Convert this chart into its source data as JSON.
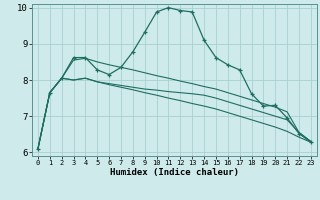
{
  "title": "",
  "xlabel": "Humidex (Indice chaleur)",
  "bg_color": "#ceeaea",
  "grid_color": "#aad0d0",
  "line_color": "#1e6e60",
  "xlim": [
    -0.5,
    23.5
  ],
  "ylim": [
    5.9,
    10.1
  ],
  "yticks": [
    6,
    7,
    8,
    9,
    10
  ],
  "xticks": [
    0,
    1,
    2,
    3,
    4,
    5,
    6,
    7,
    8,
    9,
    10,
    11,
    12,
    13,
    14,
    15,
    16,
    17,
    18,
    19,
    20,
    21,
    22,
    23
  ],
  "series": [
    {
      "x": [
        0,
        1,
        2,
        3,
        4,
        5,
        6,
        7,
        8,
        9,
        10,
        11,
        12,
        13,
        14,
        15,
        16,
        17,
        18,
        19,
        20,
        21,
        22,
        23
      ],
      "y": [
        6.1,
        7.65,
        8.05,
        8.0,
        8.05,
        7.95,
        7.9,
        7.85,
        7.8,
        7.75,
        7.72,
        7.68,
        7.65,
        7.62,
        7.58,
        7.5,
        7.4,
        7.3,
        7.2,
        7.1,
        7.0,
        6.9,
        6.55,
        6.3
      ],
      "marker": false
    },
    {
      "x": [
        0,
        1,
        2,
        3,
        4,
        5,
        6,
        7,
        8,
        9,
        10,
        11,
        12,
        13,
        14,
        15,
        16,
        17,
        18,
        19,
        20,
        21,
        22,
        23
      ],
      "y": [
        6.1,
        7.65,
        8.05,
        8.0,
        8.05,
        7.95,
        7.87,
        7.8,
        7.73,
        7.65,
        7.58,
        7.5,
        7.43,
        7.35,
        7.28,
        7.2,
        7.1,
        7.0,
        6.9,
        6.8,
        6.7,
        6.58,
        6.42,
        6.28
      ],
      "marker": false
    },
    {
      "x": [
        0,
        1,
        2,
        3,
        4,
        5,
        6,
        7,
        8,
        9,
        10,
        11,
        12,
        13,
        14,
        15,
        16,
        17,
        18,
        19,
        20,
        21,
        22,
        23
      ],
      "y": [
        6.1,
        7.65,
        8.05,
        8.55,
        8.6,
        8.5,
        8.42,
        8.35,
        8.28,
        8.2,
        8.12,
        8.05,
        7.97,
        7.9,
        7.82,
        7.75,
        7.65,
        7.55,
        7.45,
        7.35,
        7.25,
        7.12,
        6.55,
        6.3
      ],
      "marker": false
    },
    {
      "x": [
        0,
        1,
        2,
        3,
        4,
        5,
        6,
        7,
        8,
        9,
        10,
        11,
        12,
        13,
        14,
        15,
        16,
        17,
        18,
        19,
        20,
        21,
        22,
        23
      ],
      "y": [
        6.1,
        7.65,
        8.05,
        8.62,
        8.62,
        8.28,
        8.15,
        8.35,
        8.78,
        9.32,
        9.88,
        10.0,
        9.92,
        9.88,
        9.1,
        8.62,
        8.42,
        8.28,
        7.62,
        7.28,
        7.3,
        6.95,
        6.52,
        6.28
      ],
      "marker": true
    }
  ]
}
